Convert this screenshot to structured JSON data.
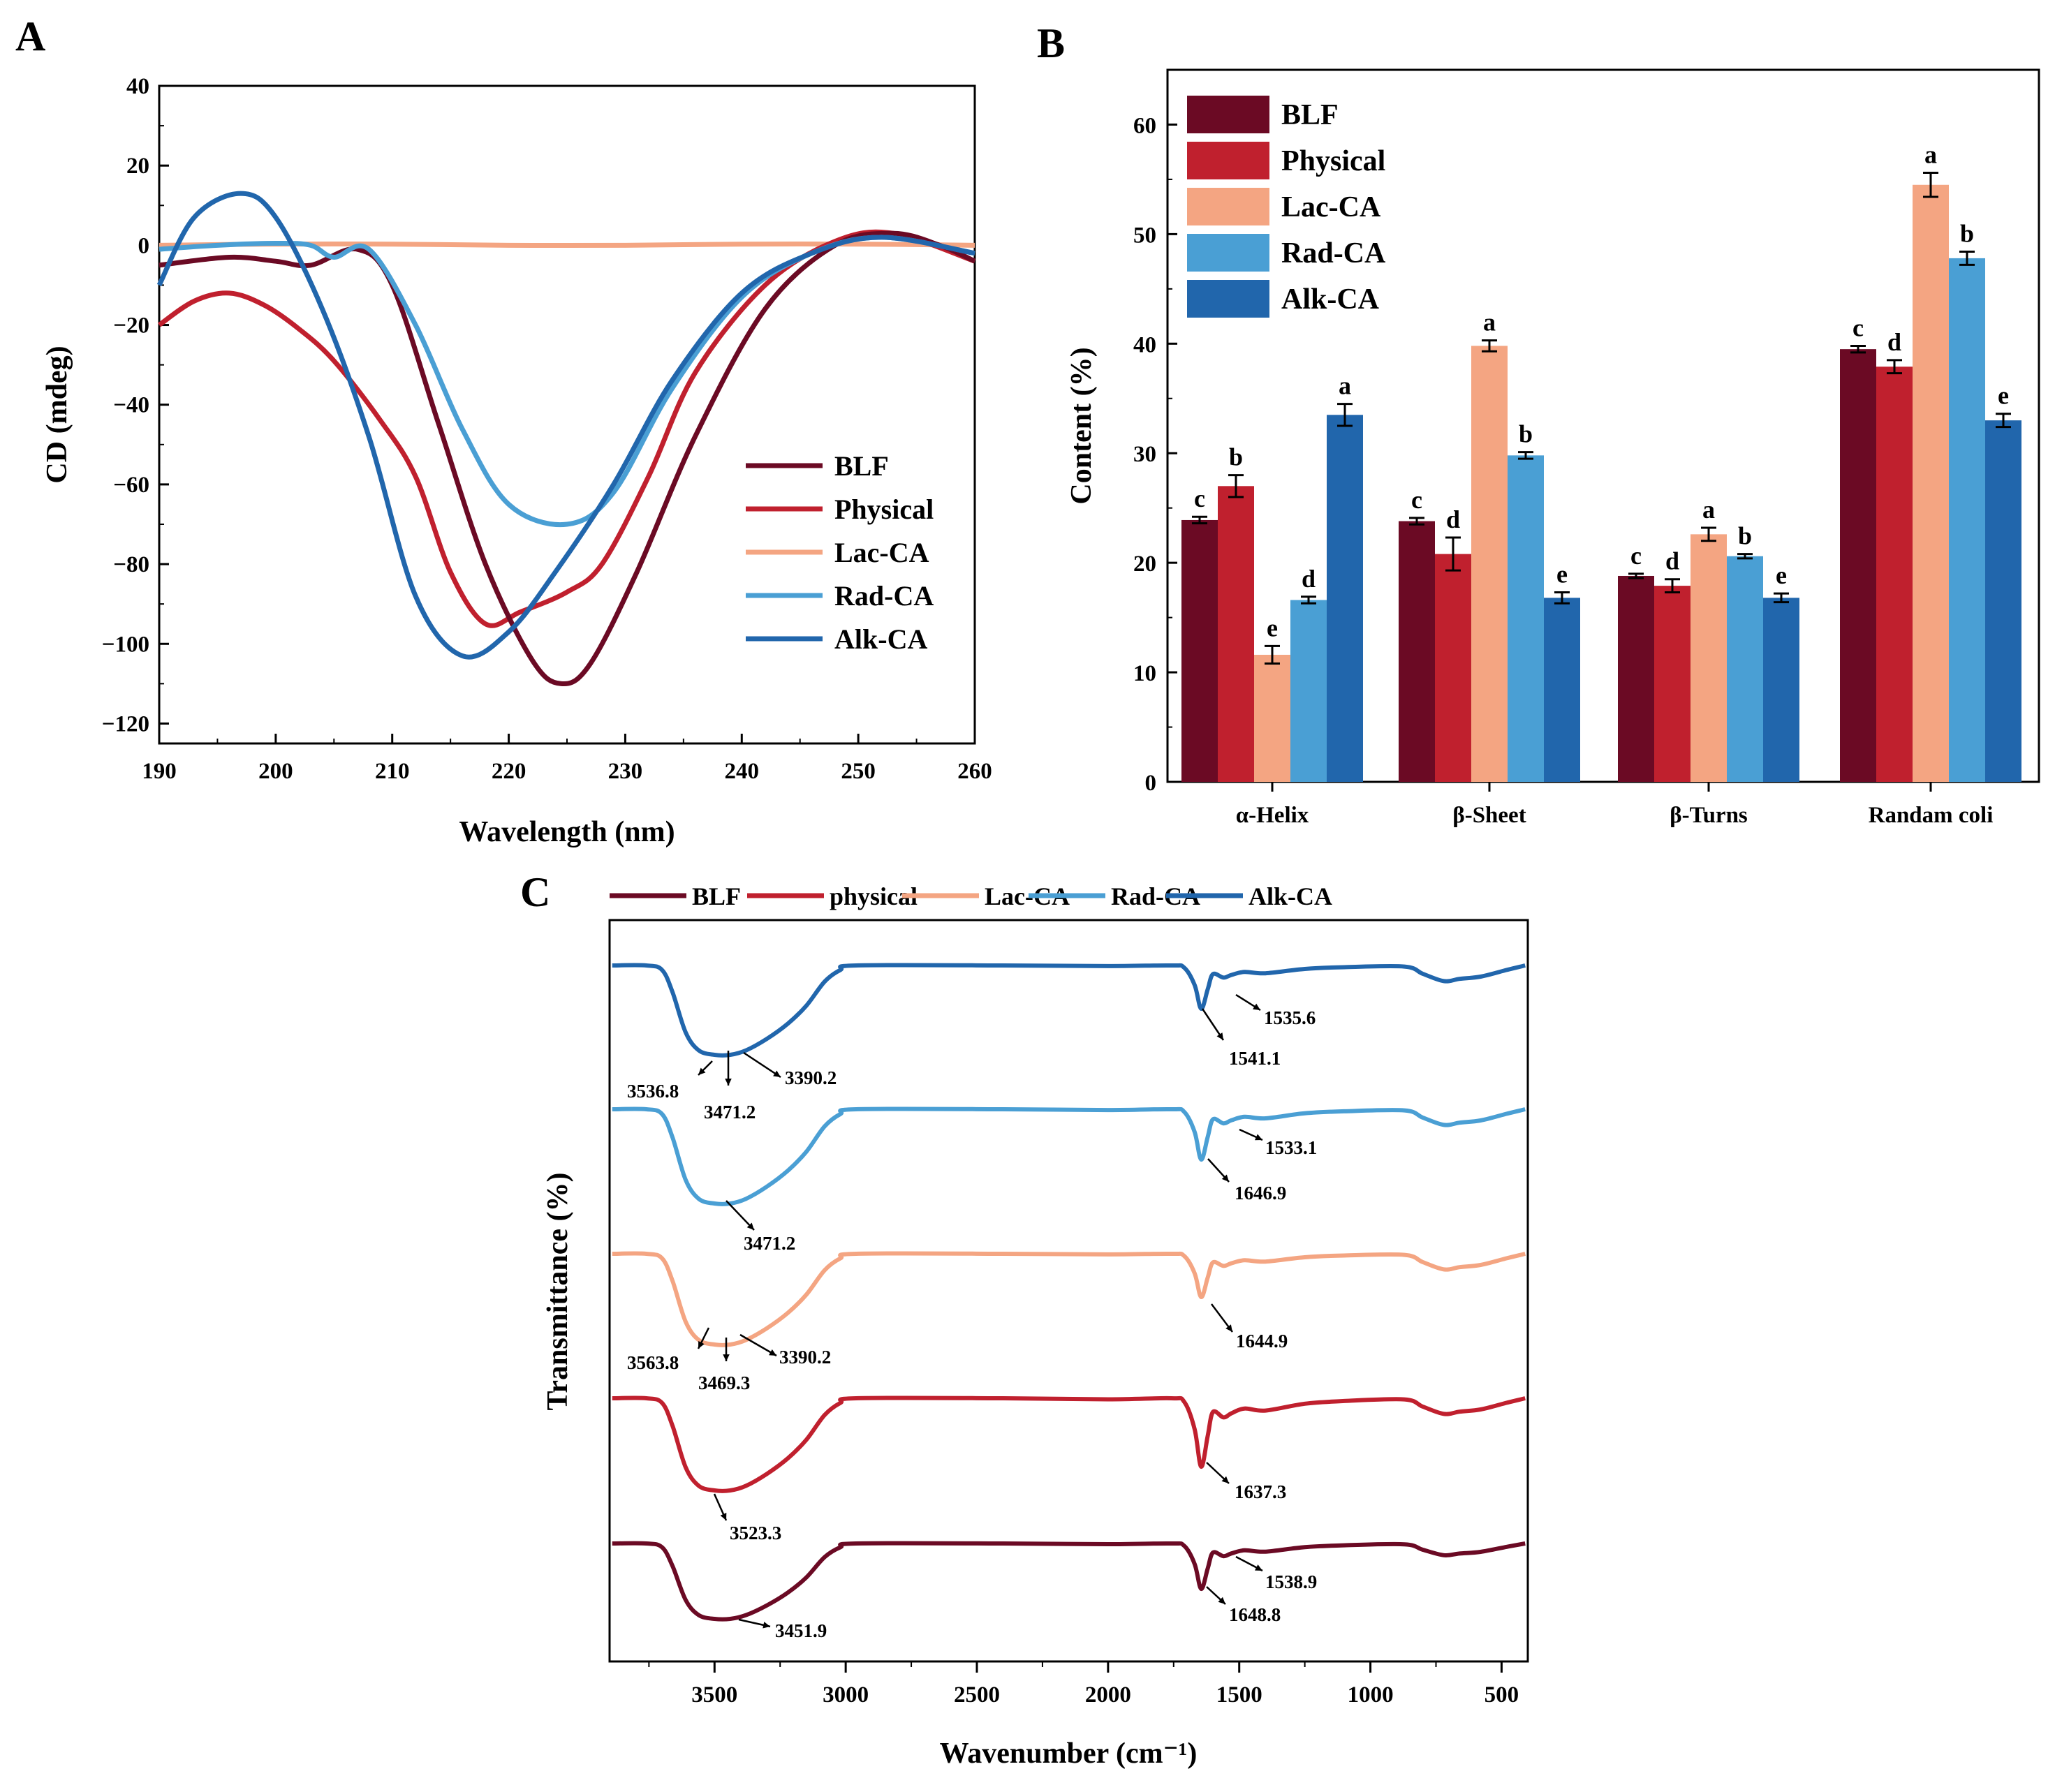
{
  "colors": {
    "BLF": "#6b0a24",
    "Physical": "#c0202e",
    "Lac-CA": "#f4a582",
    "Rad-CA": "#4a9fd4",
    "Alk-CA": "#2166ac"
  },
  "chart_data": [
    {
      "panel": "A",
      "type": "line",
      "xlabel": "Wavelength (nm)",
      "ylabel": "CD (mdeg)",
      "xlim": [
        190,
        260
      ],
      "ylim": [
        -125,
        40
      ],
      "xticks": [
        190,
        200,
        210,
        220,
        230,
        240,
        250,
        260
      ],
      "yticks": [
        40,
        20,
        0,
        -20,
        -40,
        -60,
        -80,
        -100,
        -120
      ],
      "legend_position": "center-right",
      "series": [
        {
          "name": "BLF",
          "x": [
            190,
            196,
            200,
            203,
            207,
            210,
            214,
            218,
            222,
            224.5,
            227,
            231,
            236,
            242,
            248,
            253,
            257,
            260
          ],
          "y": [
            -5,
            -3,
            -4,
            -5,
            -1,
            -10,
            -45,
            -80,
            -104,
            -110,
            -105,
            -82,
            -48,
            -16,
            0,
            3,
            0,
            -4
          ]
        },
        {
          "name": "Physical",
          "x": [
            190,
            193,
            196,
            199,
            202,
            205,
            209,
            212,
            215,
            218,
            221,
            225,
            228,
            232,
            236,
            242,
            248,
            253,
            260
          ],
          "y": [
            -20,
            -14,
            -12,
            -15,
            -21,
            -29,
            -44,
            -58,
            -82,
            -95,
            -92,
            -87,
            -80,
            -58,
            -32,
            -10,
            1,
            3,
            -4
          ]
        },
        {
          "name": "Lac-CA",
          "x": [
            190,
            200,
            210,
            220,
            230,
            240,
            250,
            260
          ],
          "y": [
            0,
            0.3,
            0.3,
            0,
            0,
            0.3,
            0.3,
            0
          ]
        },
        {
          "name": "Rad-CA",
          "x": [
            190,
            195,
            200,
            203,
            205,
            208,
            212,
            216,
            220,
            225,
            229,
            234,
            240,
            246,
            252,
            260
          ],
          "y": [
            -1,
            0,
            0.5,
            0,
            -3,
            -1,
            -20,
            -46,
            -65,
            -70,
            -62,
            -36,
            -13,
            -2,
            2,
            -2
          ]
        },
        {
          "name": "Alk-CA",
          "x": [
            190,
            193,
            197,
            200,
            204,
            208,
            212,
            216,
            220,
            224,
            229,
            234,
            240,
            246,
            252,
            260
          ],
          "y": [
            -10,
            7,
            13,
            7,
            -16,
            -48,
            -88,
            -103,
            -97,
            -82,
            -60,
            -34,
            -12,
            -2,
            2,
            -2
          ]
        }
      ]
    },
    {
      "panel": "B",
      "type": "bar",
      "ylabel": "Content (%)",
      "ylim": [
        0,
        65
      ],
      "yticks": [
        0,
        10,
        20,
        30,
        40,
        50,
        60
      ],
      "categories": [
        "α-Helix",
        "β-Sheet",
        "β-Turns",
        "Randam coli"
      ],
      "legend_position": "top-left",
      "series": [
        {
          "name": "BLF",
          "values": [
            23.9,
            23.8,
            18.8,
            39.5
          ],
          "errors": [
            0.3,
            0.3,
            0.2,
            0.3
          ],
          "letters": [
            "c",
            "c",
            "c",
            "c"
          ]
        },
        {
          "name": "Physical",
          "values": [
            27.0,
            20.8,
            17.9,
            37.9
          ],
          "errors": [
            1.0,
            1.5,
            0.6,
            0.6
          ],
          "letters": [
            "b",
            "d",
            "d",
            "d"
          ]
        },
        {
          "name": "Lac-CA",
          "values": [
            11.6,
            39.8,
            22.6,
            54.5
          ],
          "errors": [
            0.8,
            0.5,
            0.6,
            1.1
          ],
          "letters": [
            "e",
            "a",
            "a",
            "a"
          ]
        },
        {
          "name": "Rad-CA",
          "values": [
            16.6,
            29.8,
            20.6,
            47.8
          ],
          "errors": [
            0.3,
            0.3,
            0.2,
            0.6
          ],
          "letters": [
            "d",
            "b",
            "b",
            "b"
          ]
        },
        {
          "name": "Alk-CA",
          "values": [
            33.5,
            16.8,
            16.8,
            33.0
          ],
          "errors": [
            1.0,
            0.5,
            0.4,
            0.6
          ],
          "letters": [
            "a",
            "e",
            "e",
            "e"
          ]
        }
      ]
    },
    {
      "panel": "C",
      "type": "line",
      "xlabel": "Wavenumber (cm⁻¹)",
      "ylabel": "Transmittance (%)",
      "xlim": [
        3900,
        400
      ],
      "xticks": [
        3500,
        3000,
        2500,
        2000,
        1500,
        1000,
        500
      ],
      "legend_position": "top",
      "legend": [
        "BLF",
        "physical",
        "Lac-CA",
        "Rad-CA",
        "Alk-CA"
      ],
      "series": [
        {
          "name": "Alk-CA",
          "peaks": [
            "3536.8",
            "3471.2",
            "3390.2",
            "1541.1",
            "1535.6"
          ]
        },
        {
          "name": "Rad-CA",
          "peaks": [
            "3471.2",
            "1646.9",
            "1533.1"
          ]
        },
        {
          "name": "Lac-CA",
          "peaks": [
            "3563.8",
            "3469.3",
            "3390.2",
            "1644.9"
          ]
        },
        {
          "name": "Physical",
          "peaks": [
            "3523.3",
            "1637.3"
          ]
        },
        {
          "name": "BLF",
          "peaks": [
            "3451.9",
            "1648.8",
            "1538.9"
          ]
        }
      ]
    }
  ]
}
